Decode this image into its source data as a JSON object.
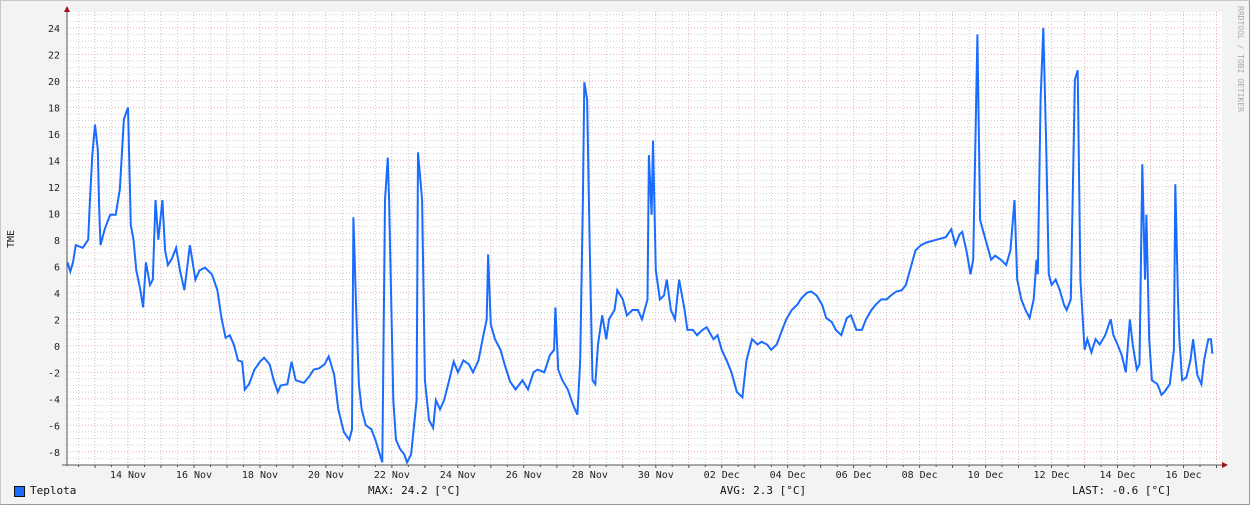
{
  "chart_data": {
    "type": "line",
    "title": "",
    "ylabel": "TME",
    "xlabel": "",
    "ylim": [
      -9,
      25.2
    ],
    "xlim": [
      "11-12 03:36",
      "12-17 04:00"
    ],
    "grid": true,
    "y_ticks": [
      "-8",
      "-6",
      "-4",
      "-2",
      "0",
      "2",
      "4",
      "6",
      "8",
      "10",
      "12",
      "14",
      "16",
      "18",
      "20",
      "22",
      "24"
    ],
    "x_ticks": [
      "14 Nov",
      "16 Nov",
      "18 Nov",
      "20 Nov",
      "22 Nov",
      "24 Nov",
      "26 Nov",
      "28 Nov",
      "30 Nov",
      "02 Dec",
      "04 Dec",
      "06 Dec",
      "08 Dec",
      "10 Dec",
      "12 Dec",
      "14 Dec",
      "16 Dec"
    ],
    "legend_position": "bottom-left",
    "series": [
      {
        "name": "Teplota",
        "color": "#1a6cff",
        "points": [
          [
            "11-12 04",
            6.3
          ],
          [
            "11-12 06",
            5.6
          ],
          [
            "11-12 08",
            6.3
          ],
          [
            "11-12 10",
            7.6
          ],
          [
            "11-12 15",
            7.4
          ],
          [
            "11-12 19",
            8.0
          ],
          [
            "11-12 20",
            10.3
          ],
          [
            "11-12 22",
            14.4
          ],
          [
            "11-13 00",
            16.7
          ],
          [
            "11-13 02",
            14.8
          ],
          [
            "11-13 03",
            10.3
          ],
          [
            "11-13 04",
            7.6
          ],
          [
            "11-13 07",
            8.8
          ],
          [
            "11-13 11",
            9.9
          ],
          [
            "11-13 15",
            9.9
          ],
          [
            "11-13 18",
            11.8
          ],
          [
            "11-13 21",
            17.1
          ],
          [
            "11-14 00",
            18.0
          ],
          [
            "11-14 02",
            9.1
          ],
          [
            "11-14 04",
            8.0
          ],
          [
            "11-14 06",
            5.7
          ],
          [
            "11-14 09",
            4.2
          ],
          [
            "11-14 11",
            2.9
          ],
          [
            "11-14 13",
            6.3
          ],
          [
            "11-14 16",
            4.6
          ],
          [
            "11-14 18",
            5.0
          ],
          [
            "11-14 20",
            11.0
          ],
          [
            "11-14 22",
            8.0
          ],
          [
            "11-15 01",
            11.0
          ],
          [
            "11-15 03",
            7.2
          ],
          [
            "11-15 05",
            6.1
          ],
          [
            "11-15 08",
            6.6
          ],
          [
            "11-15 11",
            7.4
          ],
          [
            "11-15 14",
            5.6
          ],
          [
            "11-15 17",
            4.2
          ],
          [
            "11-15 21",
            7.6
          ],
          [
            "11-16 01",
            5.0
          ],
          [
            "11-16 04",
            5.7
          ],
          [
            "11-16 08",
            5.9
          ],
          [
            "11-16 13",
            5.4
          ],
          [
            "11-16 17",
            4.2
          ],
          [
            "11-16 20",
            2.1
          ],
          [
            "11-16 23",
            0.6
          ],
          [
            "11-17 02",
            0.8
          ],
          [
            "11-17 05",
            0.1
          ],
          [
            "11-17 08",
            -1.1
          ],
          [
            "11-17 11",
            -1.2
          ],
          [
            "11-17 13",
            -3.3
          ],
          [
            "11-17 16",
            -2.9
          ],
          [
            "11-17 20",
            -1.8
          ],
          [
            "11-18 00",
            -1.2
          ],
          [
            "11-18 03",
            -0.9
          ],
          [
            "11-18 07",
            -1.4
          ],
          [
            "11-18 10",
            -2.6
          ],
          [
            "11-18 13",
            -3.5
          ],
          [
            "11-18 15",
            -3.0
          ],
          [
            "11-18 20",
            -2.9
          ],
          [
            "11-18 23",
            -1.2
          ],
          [
            "11-19 02",
            -2.6
          ],
          [
            "11-19 05",
            -2.7
          ],
          [
            "11-19 08",
            -2.8
          ],
          [
            "11-19 12",
            -2.3
          ],
          [
            "11-19 15",
            -1.8
          ],
          [
            "11-19 19",
            -1.7
          ],
          [
            "11-19 23",
            -1.4
          ],
          [
            "11-20 02",
            -0.8
          ],
          [
            "11-20 06",
            -2.2
          ],
          [
            "11-20 09",
            -4.8
          ],
          [
            "11-20 13",
            -6.5
          ],
          [
            "11-20 17",
            -7.1
          ],
          [
            "11-20 19",
            -6.3
          ],
          [
            "11-20 20",
            9.7
          ],
          [
            "11-20 22",
            2.7
          ],
          [
            "11-21 00",
            -2.9
          ],
          [
            "11-21 02",
            -4.8
          ],
          [
            "11-21 05",
            -6.0
          ],
          [
            "11-21 09",
            -6.3
          ],
          [
            "11-21 12",
            -7.1
          ],
          [
            "11-21 14",
            -7.8
          ],
          [
            "11-21 17",
            -8.8
          ],
          [
            "11-21 19",
            11.0
          ],
          [
            "11-21 21",
            14.2
          ],
          [
            "11-21 22",
            11.0
          ],
          [
            "11-22 01",
            -4.1
          ],
          [
            "11-22 03",
            -7.1
          ],
          [
            "11-22 06",
            -7.8
          ],
          [
            "11-22 09",
            -8.2
          ],
          [
            "11-22 11",
            -8.8
          ],
          [
            "11-22 14",
            -8.2
          ],
          [
            "11-22 18",
            -4.1
          ],
          [
            "11-22 19",
            14.6
          ],
          [
            "11-22 22",
            11.0
          ],
          [
            "11-23 00",
            -2.6
          ],
          [
            "11-23 03",
            -5.6
          ],
          [
            "11-23 06",
            -6.2
          ],
          [
            "11-23 08",
            -4.1
          ],
          [
            "11-23 11",
            -4.8
          ],
          [
            "11-23 14",
            -4.1
          ],
          [
            "11-23 17",
            -2.9
          ],
          [
            "11-23 21",
            -1.2
          ],
          [
            "11-24 00",
            -2.0
          ],
          [
            "11-24 04",
            -1.1
          ],
          [
            "11-24 08",
            -1.4
          ],
          [
            "11-24 11",
            -2.0
          ],
          [
            "11-24 15",
            -1.1
          ],
          [
            "11-24 18",
            0.5
          ],
          [
            "11-24 21",
            2.0
          ],
          [
            "11-24 22",
            6.9
          ],
          [
            "11-25 00",
            1.6
          ],
          [
            "11-25 03",
            0.5
          ],
          [
            "11-25 07",
            -0.3
          ],
          [
            "11-25 10",
            -1.4
          ],
          [
            "11-25 14",
            -2.7
          ],
          [
            "11-25 18",
            -3.3
          ],
          [
            "11-25 23",
            -2.6
          ],
          [
            "11-26 03",
            -3.3
          ],
          [
            "11-26 07",
            -2.0
          ],
          [
            "11-26 10",
            -1.8
          ],
          [
            "11-26 15",
            -2.0
          ],
          [
            "11-26 19",
            -0.7
          ],
          [
            "11-26 22",
            -0.3
          ],
          [
            "11-26 23",
            2.9
          ],
          [
            "11-27 01",
            -1.8
          ],
          [
            "11-27 04",
            -2.6
          ],
          [
            "11-27 08",
            -3.3
          ],
          [
            "11-27 12",
            -4.5
          ],
          [
            "11-27 15",
            -5.2
          ],
          [
            "11-27 17",
            -1.1
          ],
          [
            "11-27 19",
            11.0
          ],
          [
            "11-27 20",
            19.9
          ],
          [
            "11-27 22",
            18.6
          ],
          [
            "11-28 00",
            7.2
          ],
          [
            "11-28 02",
            -2.6
          ],
          [
            "11-28 04",
            -2.9
          ],
          [
            "11-28 06",
            0.1
          ],
          [
            "11-28 09",
            2.3
          ],
          [
            "11-28 12",
            0.5
          ],
          [
            "11-28 14",
            2.0
          ],
          [
            "11-28 18",
            2.7
          ],
          [
            "11-28 20",
            4.2
          ],
          [
            "11-29 00",
            3.5
          ],
          [
            "11-29 03",
            2.3
          ],
          [
            "11-29 07",
            2.7
          ],
          [
            "11-29 11",
            2.7
          ],
          [
            "11-29 14",
            2.0
          ],
          [
            "11-29 18",
            3.5
          ],
          [
            "11-29 19",
            14.4
          ],
          [
            "11-29 21",
            9.9
          ],
          [
            "11-29 22",
            15.5
          ],
          [
            "11-30 00",
            5.7
          ],
          [
            "11-30 03",
            3.5
          ],
          [
            "11-30 06",
            3.8
          ],
          [
            "11-30 08",
            5.0
          ],
          [
            "11-30 11",
            2.7
          ],
          [
            "11-30 14",
            2.0
          ],
          [
            "11-30 17",
            5.0
          ],
          [
            "11-30 21",
            2.7
          ],
          [
            "11-30 23",
            1.2
          ],
          [
            "12-01 03",
            1.2
          ],
          [
            "12-01 06",
            0.8
          ],
          [
            "12-01 10",
            1.2
          ],
          [
            "12-01 13",
            1.4
          ],
          [
            "12-01 18",
            0.5
          ],
          [
            "12-01 21",
            0.8
          ],
          [
            "12-02 00",
            -0.3
          ],
          [
            "12-02 04",
            -1.2
          ],
          [
            "12-02 07",
            -2.0
          ],
          [
            "12-02 11",
            -3.5
          ],
          [
            "12-02 15",
            -3.9
          ],
          [
            "12-02 18",
            -1.1
          ],
          [
            "12-02 22",
            0.5
          ],
          [
            "12-03 02",
            0.1
          ],
          [
            "12-03 05",
            0.3
          ],
          [
            "12-03 09",
            0.1
          ],
          [
            "12-03 12",
            -0.3
          ],
          [
            "12-03 16",
            0.1
          ],
          [
            "12-03 20",
            1.2
          ],
          [
            "12-03 23",
            2.0
          ],
          [
            "12-04 03",
            2.7
          ],
          [
            "12-04 07",
            3.1
          ],
          [
            "12-04 10",
            3.6
          ],
          [
            "12-04 14",
            4.0
          ],
          [
            "12-04 17",
            4.1
          ],
          [
            "12-04 21",
            3.8
          ],
          [
            "12-05 01",
            3.1
          ],
          [
            "12-05 04",
            2.1
          ],
          [
            "12-05 08",
            1.8
          ],
          [
            "12-05 11",
            1.2
          ],
          [
            "12-05 15",
            0.8
          ],
          [
            "12-05 19",
            2.1
          ],
          [
            "12-05 22",
            2.3
          ],
          [
            "12-06 02",
            1.2
          ],
          [
            "12-06 06",
            1.2
          ],
          [
            "12-06 09",
            2.0
          ],
          [
            "12-06 13",
            2.7
          ],
          [
            "12-06 16",
            3.1
          ],
          [
            "12-06 20",
            3.5
          ],
          [
            "12-07 00",
            3.5
          ],
          [
            "12-07 03",
            3.8
          ],
          [
            "12-07 07",
            4.1
          ],
          [
            "12-07 11",
            4.2
          ],
          [
            "12-07 14",
            4.6
          ],
          [
            "12-07 18",
            6.1
          ],
          [
            "12-07 21",
            7.2
          ],
          [
            "12-08 01",
            7.6
          ],
          [
            "12-08 05",
            7.8
          ],
          [
            "12-08 12",
            8.0
          ],
          [
            "12-08 19",
            8.2
          ],
          [
            "12-08 23",
            8.8
          ],
          [
            "12-09 02",
            7.6
          ],
          [
            "12-09 05",
            8.4
          ],
          [
            "12-09 07",
            8.6
          ],
          [
            "12-09 10",
            7.2
          ],
          [
            "12-09 13",
            5.4
          ],
          [
            "12-09 15",
            6.5
          ],
          [
            "12-09 18",
            23.5
          ],
          [
            "12-09 20",
            9.5
          ],
          [
            "12-10 00",
            8.0
          ],
          [
            "12-10 04",
            6.5
          ],
          [
            "12-10 07",
            6.8
          ],
          [
            "12-10 11",
            6.5
          ],
          [
            "12-10 15",
            6.1
          ],
          [
            "12-10 18",
            7.2
          ],
          [
            "12-10 21",
            11.0
          ],
          [
            "12-10 23",
            5.0
          ],
          [
            "12-11 02",
            3.5
          ],
          [
            "12-11 05",
            2.7
          ],
          [
            "12-11 08",
            2.1
          ],
          [
            "12-11 11",
            3.5
          ],
          [
            "12-11 13",
            6.5
          ],
          [
            "12-11 14",
            5.4
          ],
          [
            "12-11 16",
            18.6
          ],
          [
            "12-11 18",
            24.0
          ],
          [
            "12-11 20",
            15.5
          ],
          [
            "12-11 22",
            5.4
          ],
          [
            "12-12 00",
            4.6
          ],
          [
            "12-12 03",
            5.0
          ],
          [
            "12-12 06",
            4.2
          ],
          [
            "12-12 09",
            3.1
          ],
          [
            "12-12 11",
            2.7
          ],
          [
            "12-12 14",
            3.5
          ],
          [
            "12-12 17",
            20.1
          ],
          [
            "12-12 19",
            20.8
          ],
          [
            "12-12 21",
            5.0
          ],
          [
            "12-13 00",
            -0.3
          ],
          [
            "12-13 02",
            0.5
          ],
          [
            "12-13 05",
            -0.5
          ],
          [
            "12-13 08",
            0.5
          ],
          [
            "12-13 11",
            0.1
          ],
          [
            "12-13 15",
            0.8
          ],
          [
            "12-13 19",
            2.0
          ],
          [
            "12-13 21",
            0.8
          ],
          [
            "12-14 00",
            0.1
          ],
          [
            "12-14 03",
            -0.7
          ],
          [
            "12-14 06",
            -2.0
          ],
          [
            "12-14 09",
            2.0
          ],
          [
            "12-14 11",
            0.1
          ],
          [
            "12-14 14",
            -1.8
          ],
          [
            "12-14 16",
            -1.4
          ],
          [
            "12-14 18",
            13.7
          ],
          [
            "12-14 20",
            5.0
          ],
          [
            "12-14 21",
            9.9
          ],
          [
            "12-14 23",
            0.5
          ],
          [
            "12-15 01",
            -2.6
          ],
          [
            "12-15 05",
            -2.9
          ],
          [
            "12-15 08",
            -3.7
          ],
          [
            "12-15 10",
            -3.5
          ],
          [
            "12-15 14",
            -2.9
          ],
          [
            "12-15 17",
            -0.3
          ],
          [
            "12-15 18",
            12.2
          ],
          [
            "12-15 20",
            3.5
          ],
          [
            "12-15 21",
            0.5
          ],
          [
            "12-15 23",
            -2.6
          ],
          [
            "12-16 02",
            -2.4
          ],
          [
            "12-16 05",
            -1.1
          ],
          [
            "12-16 07",
            0.5
          ],
          [
            "12-16 10",
            -2.2
          ],
          [
            "12-16 13",
            -2.9
          ],
          [
            "12-16 15",
            -1.1
          ],
          [
            "12-16 18",
            0.5
          ],
          [
            "12-16 20",
            0.5
          ],
          [
            "12-16 21",
            -0.6
          ]
        ]
      }
    ]
  },
  "legend": {
    "series_label": "Teplota",
    "max": "MAX: 24.2 [°C]",
    "avg": "AVG: 2.3 [°C]",
    "last": "LAST: -0.6 [°C]"
  },
  "watermark": "RRDTOOL / TOBI OETIKER"
}
